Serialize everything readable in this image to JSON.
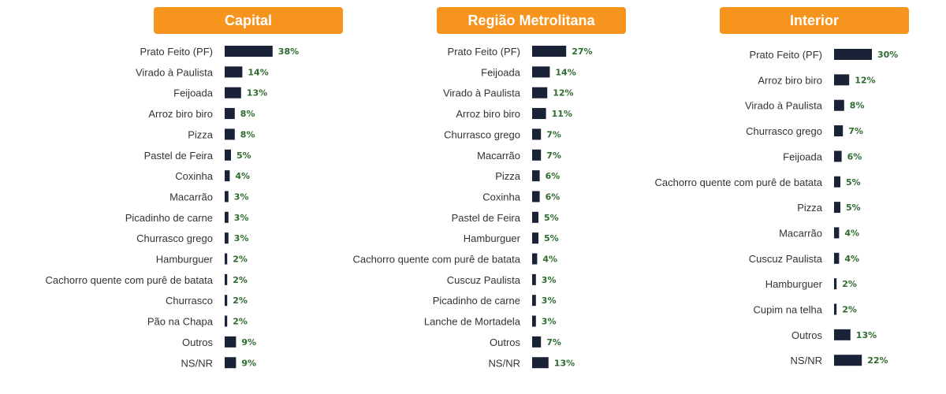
{
  "colors": {
    "header_bg": "#f7941d",
    "bar": "#1a2238",
    "value_text": "#2e6b2e"
  },
  "chart_data": [
    {
      "type": "bar",
      "orientation": "horizontal",
      "title": "Capital",
      "categories": [
        "Prato Feito (PF)",
        "Virado à Paulista",
        "Feijoada",
        "Arroz biro biro",
        "Pizza",
        "Pastel de Feira",
        "Coxinha",
        "Macarrão",
        "Picadinho de carne",
        "Churrasco grego",
        "Hamburguer",
        "Cachorro quente com purê de batata",
        "Churrasco",
        "Pão na Chapa",
        "Outros",
        "NS/NR"
      ],
      "values": [
        38,
        14,
        13,
        8,
        8,
        5,
        4,
        3,
        3,
        3,
        2,
        2,
        2,
        2,
        9,
        9
      ],
      "value_labels": [
        "38%",
        "14%",
        "13%",
        "8%",
        "8%",
        "5%",
        "4%",
        "3%",
        "3%",
        "3%",
        "2%",
        "2%",
        "2%",
        "2%",
        "9%",
        "9%"
      ]
    },
    {
      "type": "bar",
      "orientation": "horizontal",
      "title": "Região Metrolitana",
      "categories": [
        "Prato Feito (PF)",
        "Feijoada",
        "Virado à Paulista",
        "Arroz biro biro",
        "Churrasco grego",
        "Macarrão",
        "Pizza",
        "Coxinha",
        "Pastel de Feira",
        "Hamburguer",
        "Cachorro quente com purê de batata",
        "Cuscuz Paulista",
        "Picadinho de carne",
        "Lanche de Mortadela",
        "Outros",
        "NS/NR"
      ],
      "values": [
        27,
        14,
        12,
        11,
        7,
        7,
        6,
        6,
        5,
        5,
        4,
        3,
        3,
        3,
        7,
        13
      ],
      "value_labels": [
        "27%",
        "14%",
        "12%",
        "11%",
        "7%",
        "7%",
        "6%",
        "6%",
        "5%",
        "5%",
        "4%",
        "3%",
        "3%",
        "3%",
        "7%",
        "13%"
      ]
    },
    {
      "type": "bar",
      "orientation": "horizontal",
      "title": "Interior",
      "categories": [
        "Prato Feito (PF)",
        "Arroz biro biro",
        "Virado à Paulista",
        "Churrasco grego",
        "Feijoada",
        "Cachorro quente com purê de batata",
        "Pizza",
        "Macarrão",
        "Cuscuz Paulista",
        "Hamburguer",
        "Cupim na telha",
        "Outros",
        "NS/NR"
      ],
      "values": [
        30,
        12,
        8,
        7,
        6,
        5,
        5,
        4,
        4,
        2,
        2,
        13,
        22
      ],
      "value_labels": [
        "30%",
        "12%",
        "8%",
        "7%",
        "6%",
        "5%",
        "5%",
        "4%",
        "4%",
        "2%",
        "2%",
        "13%",
        "22%"
      ]
    }
  ]
}
